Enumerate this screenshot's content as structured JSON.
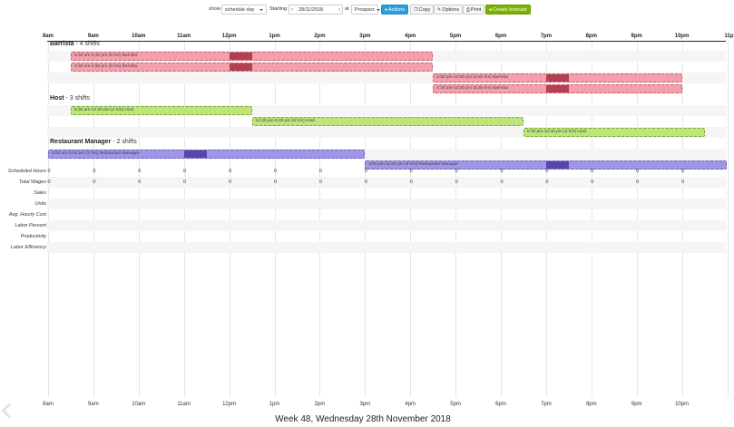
{
  "toolbar": {
    "show_label": "show",
    "view_select": "schedule day",
    "starting_label": "Starting",
    "prev_arrow": "‹",
    "date_value": "28/11/2018",
    "next_arrow": "›",
    "at_label": "at",
    "location_select": "Prospect",
    "actions_label": "Actions",
    "copy_label": "Copy",
    "options_label": "Options",
    "print_label": "Print",
    "forecast_label": "Create forecast"
  },
  "hours_top": [
    "8am",
    "9am",
    "10am",
    "11am",
    "12pm",
    "1pm",
    "2pm",
    "3pm",
    "4pm",
    "5pm",
    "6pm",
    "7pm",
    "8pm",
    "9pm",
    "10pm",
    "11p"
  ],
  "hours_bottom": [
    "8am",
    "9am",
    "10am",
    "11am",
    "12pm",
    "1pm",
    "2pm",
    "3pm",
    "4pm",
    "5pm",
    "6pm",
    "7pm",
    "8pm",
    "9pm",
    "10pm"
  ],
  "groups": [
    {
      "name": "Barrista",
      "count": " - 4 shifts",
      "shifts": [
        {
          "label": "8:30 am-4:30 pm (8 hrs) Barrista",
          "start": 8.5,
          "end": 16.5,
          "break_start": 12.0,
          "break_end": 12.5
        },
        {
          "label": "8:30 am-4:30 pm (8 hrs) Barrista",
          "start": 8.5,
          "end": 16.5,
          "break_start": 12.0,
          "break_end": 12.5
        },
        {
          "label": "4:30 pm-10:00 pm (5.50 hrs) Barrista",
          "start": 16.5,
          "end": 22.0,
          "break_start": 19.0,
          "break_end": 19.5
        },
        {
          "label": "4:30 pm-10:00 pm (5.50 hrs) Barrista",
          "start": 16.5,
          "end": 22.0,
          "break_start": 19.0,
          "break_end": 19.5
        }
      ]
    },
    {
      "name": "Host",
      "count": " - 3 shifts",
      "shifts": [
        {
          "label": "8:30 am-12:30 pm (4 hrs) Host",
          "start": 8.5,
          "end": 12.5
        },
        {
          "label": "12:30 pm-6:30 pm (6 hrs) Host",
          "start": 12.5,
          "end": 18.5
        },
        {
          "label": "6:30 pm-10:30 pm (4 hrs) Host",
          "start": 18.5,
          "end": 22.5
        }
      ]
    },
    {
      "name": "Restaurant Manager",
      "count": " - 2 shifts",
      "shifts": [
        {
          "label": "8:00 am-3:00 pm (7 hrs) Restaurant Manager",
          "start": 8.0,
          "end": 15.0,
          "break_start": 11.0,
          "break_end": 11.5
        },
        {
          "label": "3:00 pm-11:00 pm (8 hrs) Restaurant Manager",
          "start": 15.0,
          "end": 23.0,
          "break_start": 19.0,
          "break_end": 19.5
        }
      ]
    }
  ],
  "stats": [
    {
      "label": "Scheduled Hours",
      "values": [
        "0",
        "0",
        "0",
        "0",
        "0",
        "0",
        "0",
        "0",
        "0",
        "0",
        "0",
        "0",
        "0",
        "0",
        "0"
      ]
    },
    {
      "label": "Total Wages",
      "values": [
        "0",
        "0",
        "0",
        "0",
        "0",
        "0",
        "0",
        "0",
        "0",
        "0",
        "0",
        "0",
        "0",
        "0",
        "0"
      ]
    },
    {
      "label": "Sales",
      "values": []
    },
    {
      "label": "Units",
      "values": []
    },
    {
      "label": "Avg. Hourly Cost",
      "values": []
    },
    {
      "label": "Labor Percent",
      "values": []
    },
    {
      "label": "Productivity",
      "values": []
    },
    {
      "label": "Labor Efficiency",
      "values": []
    }
  ],
  "footer": {
    "title": "Week 48, Wednesday 28th November 2018"
  },
  "colors": {
    "barista": "#f4a0ac",
    "host": "#bde57a",
    "manager": "#9f97e6"
  }
}
